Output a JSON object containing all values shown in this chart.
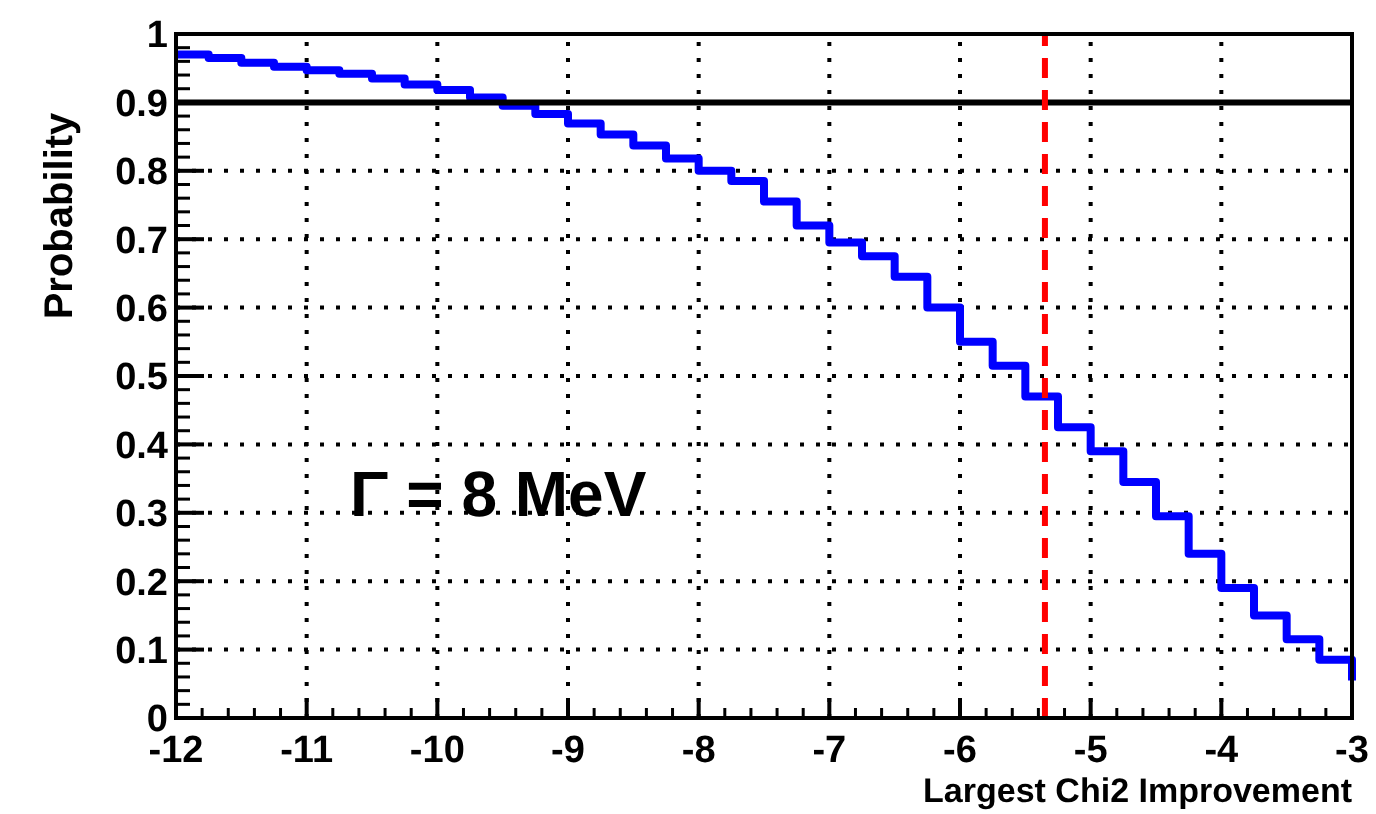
{
  "chart_data": {
    "type": "step",
    "xlabel": "Largest Chi2 Improvement",
    "ylabel": "Probability",
    "annotations": [
      "Γ = 8 MeV"
    ],
    "x": [
      -12,
      -11.75,
      -11.5,
      -11.25,
      -11,
      -10.75,
      -10.5,
      -10.25,
      -10,
      -9.75,
      -9.5,
      -9.25,
      -9,
      -8.75,
      -8.5,
      -8.25,
      -8,
      -7.75,
      -7.5,
      -7.25,
      -7,
      -6.75,
      -6.5,
      -6.25,
      -6,
      -5.75,
      -5.5,
      -5.25,
      -5,
      -4.75,
      -4.5,
      -4.25,
      -4,
      -3.75,
      -3.5,
      -3.25,
      -3
    ],
    "series": [
      {
        "color": "#0000ff",
        "values": [
          0.97,
          0.965,
          0.958,
          0.952,
          0.947,
          0.942,
          0.935,
          0.926,
          0.918,
          0.907,
          0.895,
          0.883,
          0.869,
          0.853,
          0.837,
          0.818,
          0.8,
          0.785,
          0.755,
          0.72,
          0.695,
          0.675,
          0.645,
          0.6,
          0.55,
          0.515,
          0.47,
          0.425,
          0.39,
          0.345,
          0.295,
          0.24,
          0.19,
          0.15,
          0.115,
          0.085,
          0.055
        ]
      }
    ],
    "xlim": [
      -12,
      -3
    ],
    "xticks": [
      -12,
      -11,
      -10,
      -9,
      -8,
      -7,
      -6,
      -5,
      -4,
      -3
    ],
    "ylim": [
      0,
      1
    ],
    "yticks": [
      0,
      {
        "value": 0.1,
        "label": "0.1"
      },
      {
        "value": 0.2,
        "label": "0.2"
      },
      {
        "value": 0.3,
        "label": "0.3"
      },
      {
        "value": 0.4,
        "label": "0.4"
      },
      {
        "value": 0.5,
        "label": "0.5"
      },
      {
        "value": 0.6,
        "label": "0.6"
      },
      {
        "value": 0.7,
        "label": "0.7"
      },
      {
        "value": 0.8,
        "label": "0.8"
      },
      {
        "value": 0.9,
        "label": "0.9"
      },
      1
    ],
    "ref_lines": [
      {
        "axis": "y",
        "value": 0.9,
        "color": "#000000",
        "line_style": "solid"
      },
      {
        "axis": "x",
        "value": -5.35,
        "color": "#ff0000",
        "line_style": "dashed"
      }
    ],
    "grid": true,
    "line_style": "solid"
  }
}
